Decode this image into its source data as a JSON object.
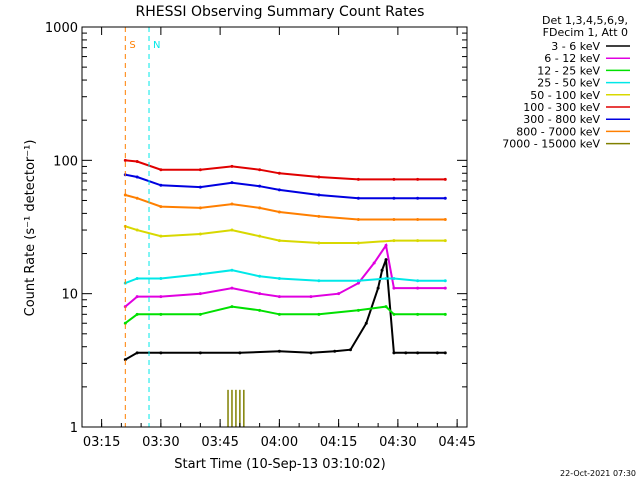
{
  "chart_data": {
    "type": "line",
    "title": "RHESSI Observing Summary Count Rates",
    "xlabel": "Start Time (10-Sep-13 03:10:02)",
    "ylabel": "Count Rate (s⁻¹ detector⁻¹)",
    "yscale": "log",
    "ylim": [
      1,
      1000
    ],
    "xlim": [
      "03:10:02",
      "04:47:30"
    ],
    "x_ticks": [
      "03:15",
      "03:30",
      "03:45",
      "04:00",
      "04:15",
      "04:30",
      "04:45"
    ],
    "y_ticks": [
      "1",
      "10",
      "100",
      "1000"
    ],
    "grid": false,
    "legend_header": [
      "Det 1,3,4,5,6,9,",
      "FDecim 1, Att 0"
    ],
    "legend_position": "right",
    "timestamp": "22-Oct-2021 07:30",
    "series": [
      {
        "name": "3 - 6 keV",
        "color": "#000000",
        "x": [
          "03:21",
          "03:24",
          "03:30",
          "03:40",
          "03:50",
          "04:00",
          "04:08",
          "04:14",
          "04:18",
          "04:22",
          "04:25",
          "04:26",
          "04:27",
          "04:29",
          "04:32",
          "04:35",
          "04:40",
          "04:42"
        ],
        "values": [
          3.2,
          3.6,
          3.6,
          3.6,
          3.6,
          3.7,
          3.6,
          3.7,
          3.8,
          6,
          11,
          15,
          18,
          3.6,
          3.6,
          3.6,
          3.6,
          3.6
        ]
      },
      {
        "name": "6 - 12 keV",
        "color": "#e000e0",
        "x": [
          "03:21",
          "03:24",
          "03:30",
          "03:40",
          "03:48",
          "03:55",
          "04:00",
          "04:08",
          "04:15",
          "04:20",
          "04:24",
          "04:27",
          "04:29",
          "04:35",
          "04:42"
        ],
        "values": [
          8,
          9.5,
          9.5,
          10,
          11,
          10,
          9.5,
          9.5,
          10,
          12,
          17,
          23,
          11,
          11,
          11
        ]
      },
      {
        "name": "12 - 25 keV",
        "color": "#00e000",
        "x": [
          "03:21",
          "03:24",
          "03:30",
          "03:40",
          "03:48",
          "03:55",
          "04:00",
          "04:10",
          "04:20",
          "04:27",
          "04:29",
          "04:35",
          "04:42"
        ],
        "values": [
          6,
          7,
          7,
          7,
          8,
          7.5,
          7,
          7,
          7.5,
          8,
          7,
          7,
          7
        ]
      },
      {
        "name": "25 - 50 keV",
        "color": "#00e8e8",
        "x": [
          "03:21",
          "03:24",
          "03:30",
          "03:40",
          "03:48",
          "03:55",
          "04:00",
          "04:10",
          "04:20",
          "04:27",
          "04:29",
          "04:35",
          "04:42"
        ],
        "values": [
          12,
          13,
          13,
          14,
          15,
          13.5,
          13,
          12.5,
          12.5,
          13,
          13,
          12.5,
          12.5
        ]
      },
      {
        "name": "50 - 100 keV",
        "color": "#d8d800",
        "x": [
          "03:21",
          "03:24",
          "03:30",
          "03:40",
          "03:48",
          "03:55",
          "04:00",
          "04:10",
          "04:20",
          "04:29",
          "04:35",
          "04:42"
        ],
        "values": [
          32,
          30,
          27,
          28,
          30,
          27,
          25,
          24,
          24,
          25,
          25,
          25
        ]
      },
      {
        "name": "100 - 300 keV",
        "color": "#e00000",
        "x": [
          "03:21",
          "03:24",
          "03:30",
          "03:40",
          "03:48",
          "03:55",
          "04:00",
          "04:10",
          "04:20",
          "04:29",
          "04:35",
          "04:42"
        ],
        "values": [
          100,
          98,
          85,
          85,
          90,
          85,
          80,
          75,
          72,
          72,
          72,
          72
        ]
      },
      {
        "name": "300 - 800 keV",
        "color": "#0000e0",
        "x": [
          "03:21",
          "03:24",
          "03:30",
          "03:40",
          "03:48",
          "03:55",
          "04:00",
          "04:10",
          "04:20",
          "04:29",
          "04:35",
          "04:42"
        ],
        "values": [
          78,
          75,
          65,
          63,
          68,
          64,
          60,
          55,
          52,
          52,
          52,
          52
        ]
      },
      {
        "name": "800 - 7000 keV",
        "color": "#ff7f00",
        "x": [
          "03:21",
          "03:24",
          "03:30",
          "03:40",
          "03:48",
          "03:55",
          "04:00",
          "04:10",
          "04:20",
          "04:29",
          "04:35",
          "04:42"
        ],
        "values": [
          55,
          52,
          45,
          44,
          47,
          44,
          41,
          38,
          36,
          36,
          36,
          36
        ]
      },
      {
        "name": "7000 - 15000 keV",
        "color": "#808000",
        "x": [
          "03:47",
          "03:48",
          "03:49",
          "03:50",
          "03:51"
        ],
        "values": [
          1.9,
          1.9,
          1.9,
          1.9,
          1.9
        ]
      }
    ],
    "annotations": [
      {
        "text": "S",
        "color": "#ff7f00",
        "x": "03:21"
      },
      {
        "text": "N",
        "color": "#00e8e8",
        "x": "03:27"
      }
    ]
  }
}
